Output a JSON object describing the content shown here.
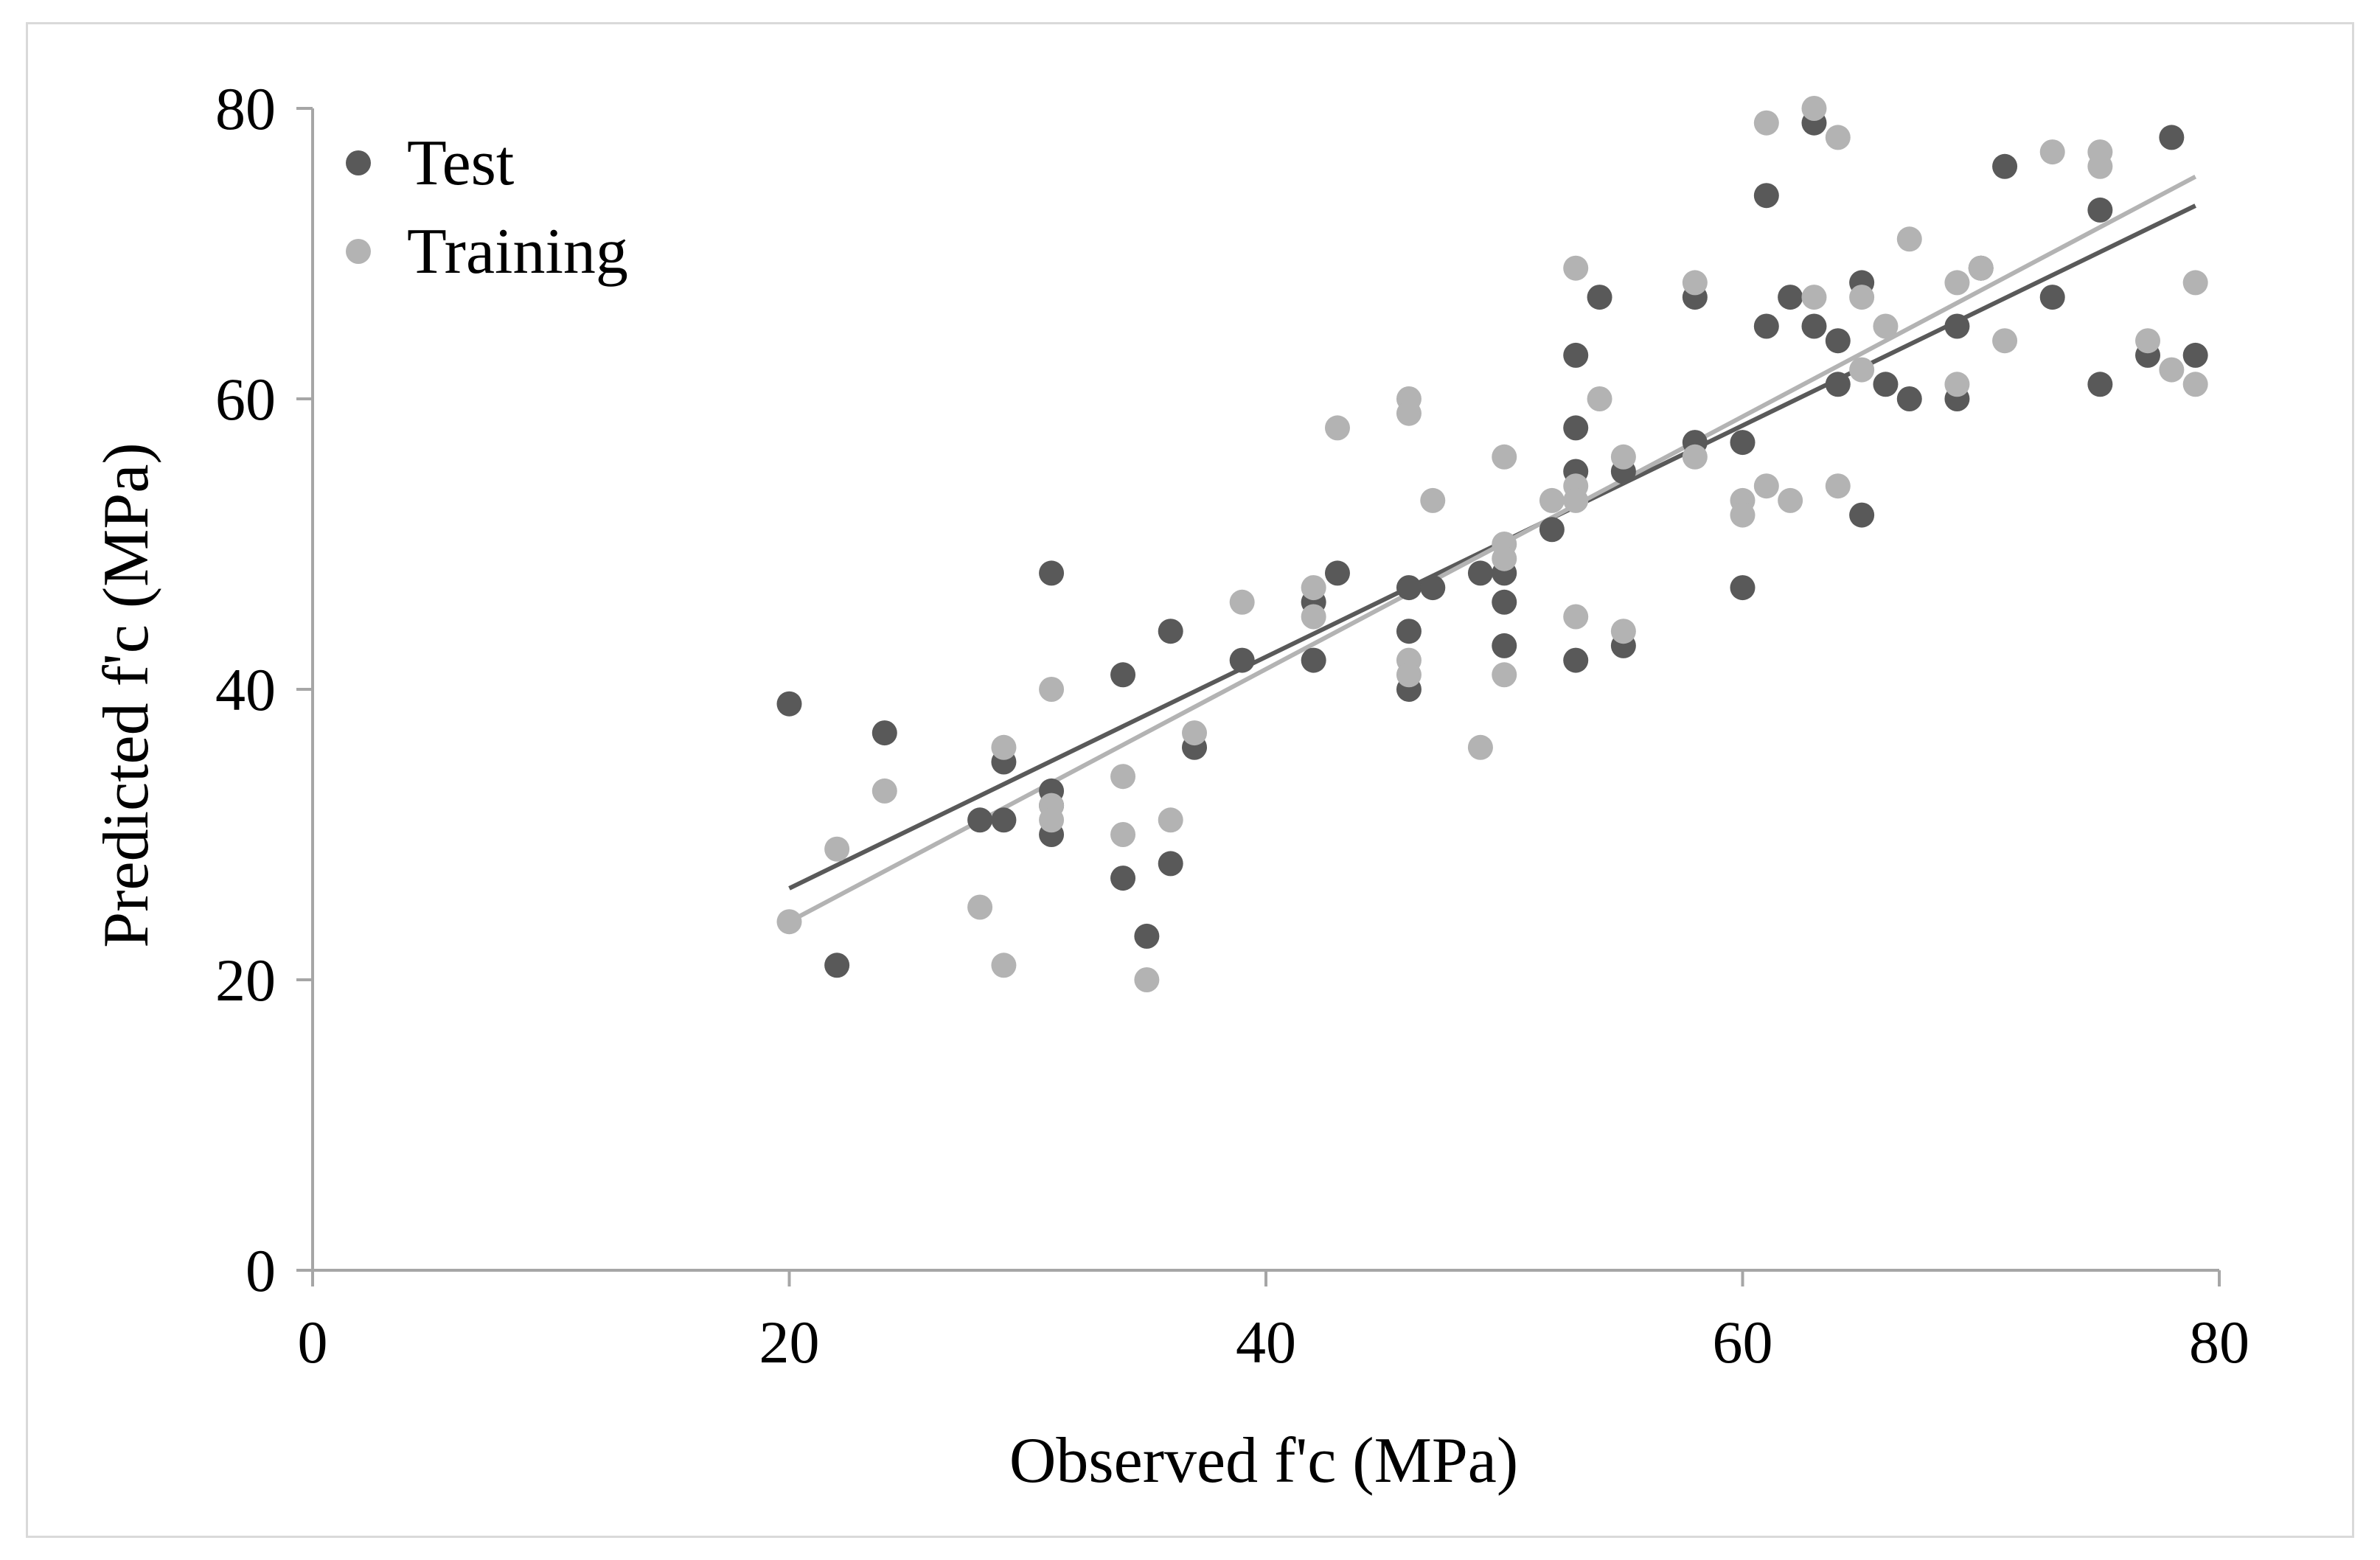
{
  "chart_data": {
    "type": "scatter",
    "title": "",
    "xlabel": "Observed f'c (MPa)",
    "ylabel": "Predicted f'c (MPa)",
    "xlim": [
      0,
      80
    ],
    "ylim": [
      0,
      80
    ],
    "xticks": [
      0,
      20,
      40,
      60,
      80
    ],
    "yticks": [
      0,
      20,
      40,
      60,
      80
    ],
    "grid": false,
    "legend_position": "top-left",
    "series": [
      {
        "name": "Test",
        "color": "#595959",
        "points": [
          [
            20,
            39
          ],
          [
            22,
            21
          ],
          [
            24,
            37
          ],
          [
            28,
            31
          ],
          [
            29,
            35
          ],
          [
            29,
            31
          ],
          [
            31,
            48
          ],
          [
            31,
            33
          ],
          [
            31,
            32
          ],
          [
            31,
            30
          ],
          [
            34,
            41
          ],
          [
            34,
            27
          ],
          [
            35,
            23
          ],
          [
            36,
            44
          ],
          [
            36,
            28
          ],
          [
            37,
            36
          ],
          [
            39,
            42
          ],
          [
            42,
            46
          ],
          [
            42,
            42
          ],
          [
            43,
            48
          ],
          [
            46,
            47
          ],
          [
            46,
            44
          ],
          [
            46,
            40
          ],
          [
            47,
            47
          ],
          [
            49,
            48
          ],
          [
            50,
            48
          ],
          [
            50,
            46
          ],
          [
            50,
            43
          ],
          [
            52,
            51
          ],
          [
            53,
            63
          ],
          [
            53,
            58
          ],
          [
            53,
            55
          ],
          [
            53,
            42
          ],
          [
            54,
            67
          ],
          [
            55,
            55
          ],
          [
            55,
            43
          ],
          [
            58,
            67
          ],
          [
            58,
            57
          ],
          [
            60,
            57
          ],
          [
            60,
            47
          ],
          [
            61,
            74
          ],
          [
            61,
            65
          ],
          [
            62,
            67
          ],
          [
            63,
            79
          ],
          [
            63,
            65
          ],
          [
            64,
            64
          ],
          [
            64,
            61
          ],
          [
            65,
            68
          ],
          [
            65,
            52
          ],
          [
            66,
            61
          ],
          [
            67,
            60
          ],
          [
            69,
            65
          ],
          [
            69,
            60
          ],
          [
            70,
            69
          ],
          [
            71,
            76
          ],
          [
            73,
            67
          ],
          [
            75,
            73
          ],
          [
            75,
            61
          ],
          [
            77,
            63
          ],
          [
            78,
            78
          ],
          [
            79,
            63
          ]
        ],
        "trendline": [
          [
            20,
            26.3
          ],
          [
            79,
            73.3
          ]
        ]
      },
      {
        "name": "Training",
        "color": "#b3b3b3",
        "points": [
          [
            20,
            24
          ],
          [
            22,
            29
          ],
          [
            24,
            33
          ],
          [
            28,
            25
          ],
          [
            29,
            36
          ],
          [
            29,
            21
          ],
          [
            31,
            40
          ],
          [
            31,
            32
          ],
          [
            31,
            31
          ],
          [
            34,
            34
          ],
          [
            34,
            30
          ],
          [
            35,
            20
          ],
          [
            36,
            31
          ],
          [
            37,
            37
          ],
          [
            39,
            46
          ],
          [
            42,
            47
          ],
          [
            42,
            45
          ],
          [
            43,
            58
          ],
          [
            46,
            60
          ],
          [
            46,
            59
          ],
          [
            46,
            42
          ],
          [
            46,
            41
          ],
          [
            47,
            53
          ],
          [
            49,
            36
          ],
          [
            50,
            56
          ],
          [
            50,
            50
          ],
          [
            50,
            49
          ],
          [
            50,
            41
          ],
          [
            52,
            53
          ],
          [
            53,
            69
          ],
          [
            53,
            54
          ],
          [
            53,
            53
          ],
          [
            53,
            45
          ],
          [
            54,
            60
          ],
          [
            55,
            56
          ],
          [
            55,
            44
          ],
          [
            58,
            68
          ],
          [
            58,
            56
          ],
          [
            60,
            53
          ],
          [
            60,
            52
          ],
          [
            61,
            79
          ],
          [
            61,
            54
          ],
          [
            62,
            53
          ],
          [
            63,
            80
          ],
          [
            63,
            67
          ],
          [
            64,
            78
          ],
          [
            64,
            54
          ],
          [
            65,
            67
          ],
          [
            65,
            62
          ],
          [
            66,
            65
          ],
          [
            67,
            71
          ],
          [
            69,
            68
          ],
          [
            69,
            61
          ],
          [
            70,
            69
          ],
          [
            71,
            64
          ],
          [
            73,
            77
          ],
          [
            75,
            77
          ],
          [
            75,
            76
          ],
          [
            77,
            64
          ],
          [
            78,
            62
          ],
          [
            79,
            68
          ],
          [
            79,
            61
          ]
        ],
        "trendline": [
          [
            20,
            24
          ],
          [
            79,
            75.3
          ]
        ]
      }
    ]
  }
}
